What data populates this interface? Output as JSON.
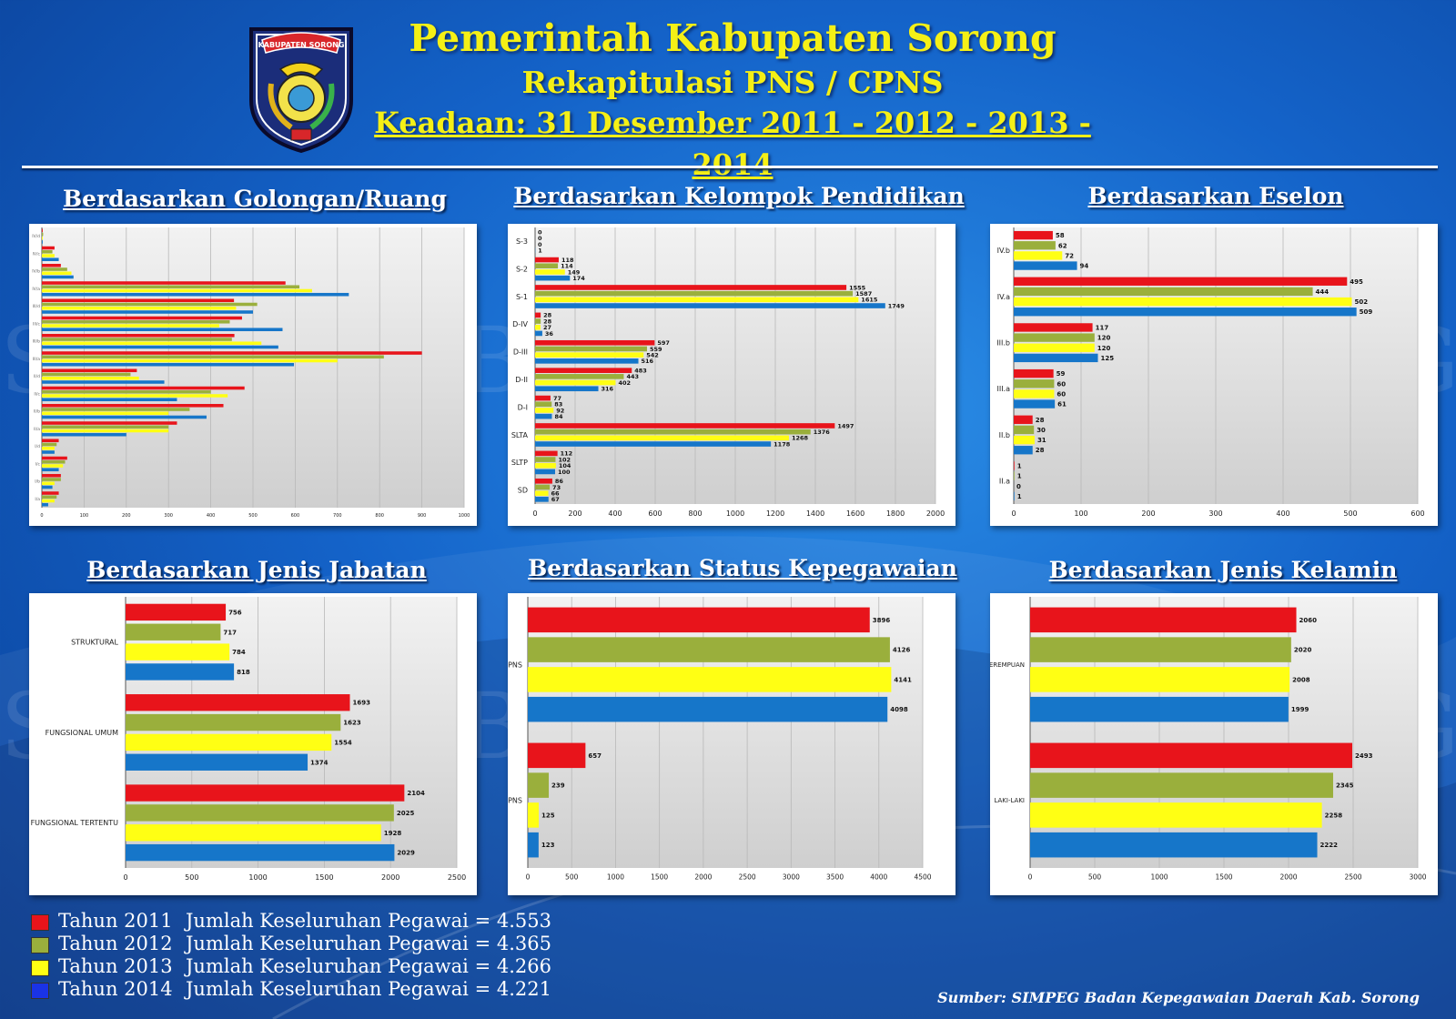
{
  "header": {
    "title": "Pemerintah Kabupaten Sorong",
    "subtitle": "Rekapitulasi PNS / CPNS",
    "date_line": "Keadaan: 31 Desember 2011 - 2012 - 2013 - 2014",
    "logo_text": "KABUPATEN SORONG"
  },
  "watermark": "SIMPEG BKD KAB. SORONG",
  "colors": {
    "y2011": "#e8141b",
    "y2012": "#9aaf3c",
    "y2013": "#ffff14",
    "y2014": "#1676c9"
  },
  "series_names": [
    "2011",
    "2012",
    "2013",
    "2014"
  ],
  "legend": [
    {
      "year": "Tahun 2011",
      "total": "Jumlah Keseluruhan Pegawai = 4.553",
      "color": "#e8141b"
    },
    {
      "year": "Tahun 2012",
      "total": "Jumlah Keseluruhan Pegawai = 4.365",
      "color": "#9aaf3c"
    },
    {
      "year": "Tahun 2013",
      "total": "Jumlah Keseluruhan Pegawai = 4.266",
      "color": "#ffff14"
    },
    {
      "year": "Tahun 2014",
      "total": "Jumlah Keseluruhan Pegawai = 4.221",
      "color": "#1a33e6"
    }
  ],
  "source": "Sumber: SIMPEG Badan Kepegawaian Daerah Kab. Sorong",
  "chart_data": [
    {
      "id": "golongan",
      "type": "bar",
      "orientation": "horizontal",
      "title": "Berdasarkan Golongan/Ruang",
      "xlim": [
        0,
        1000
      ],
      "ticks": [
        0,
        100,
        200,
        300,
        400,
        500,
        600,
        700,
        800,
        900,
        1000
      ],
      "categories": [
        "IV/d",
        "IV/c",
        "IV/b",
        "IV/a",
        "III/d",
        "III/c",
        "III/b",
        "III/a",
        "II/d",
        "II/c",
        "II/b",
        "II/a",
        "I/d",
        "I/c",
        "I/b",
        "I/a"
      ],
      "category_labels_legible": false,
      "show_value_labels": false,
      "series": [
        {
          "name": "2011",
          "values": [
            2,
            30,
            45,
            577,
            455,
            474,
            456,
            900,
            225,
            480,
            430,
            320,
            40,
            60,
            45,
            40
          ]
        },
        {
          "name": "2012",
          "values": [
            3,
            25,
            60,
            610,
            510,
            445,
            450,
            810,
            210,
            400,
            350,
            300,
            35,
            55,
            45,
            35
          ]
        },
        {
          "name": "2013",
          "values": [
            2,
            30,
            70,
            640,
            460,
            420,
            520,
            700,
            230,
            440,
            300,
            300,
            30,
            50,
            30,
            30
          ]
        },
        {
          "name": "2014",
          "values": [
            2,
            40,
            75,
            727,
            500,
            570,
            560,
            597,
            290,
            320,
            390,
            200,
            30,
            40,
            25,
            15
          ]
        }
      ]
    },
    {
      "id": "pendidikan",
      "type": "bar",
      "orientation": "horizontal",
      "title": "Berdasarkan Kelompok Pendidikan",
      "xlim": [
        0,
        2000
      ],
      "ticks": [
        0,
        200,
        400,
        600,
        800,
        1000,
        1200,
        1400,
        1600,
        1800,
        2000
      ],
      "categories": [
        "S-3",
        "S-2",
        "S-1",
        "D-IV",
        "D-III",
        "D-II",
        "D-I",
        "SLTA",
        "SLTP",
        "SD"
      ],
      "series": [
        {
          "name": "2011",
          "values": [
            0,
            118,
            1555,
            28,
            597,
            483,
            77,
            1497,
            112,
            86
          ]
        },
        {
          "name": "2012",
          "values": [
            0,
            114,
            1587,
            28,
            559,
            443,
            83,
            1376,
            102,
            73
          ]
        },
        {
          "name": "2013",
          "values": [
            0,
            149,
            1615,
            27,
            542,
            402,
            92,
            1268,
            104,
            66
          ]
        },
        {
          "name": "2014",
          "values": [
            1,
            174,
            1749,
            36,
            516,
            316,
            84,
            1178,
            100,
            67
          ]
        }
      ]
    },
    {
      "id": "eselon",
      "type": "bar",
      "orientation": "horizontal",
      "title": "Berdasarkan Eselon",
      "xlim": [
        0,
        600
      ],
      "ticks": [
        0,
        100,
        200,
        300,
        400,
        500,
        600
      ],
      "categories": [
        "IV.b",
        "IV.a",
        "III.b",
        "III.a",
        "II.b",
        "II.a"
      ],
      "series": [
        {
          "name": "2011",
          "values": [
            58,
            495,
            117,
            59,
            28,
            1
          ]
        },
        {
          "name": "2012",
          "values": [
            62,
            444,
            120,
            60,
            30,
            1
          ]
        },
        {
          "name": "2013",
          "values": [
            72,
            502,
            120,
            60,
            31,
            0
          ]
        },
        {
          "name": "2014",
          "values": [
            94,
            509,
            125,
            61,
            28,
            1
          ]
        }
      ]
    },
    {
      "id": "jabatan",
      "type": "bar",
      "orientation": "horizontal",
      "title": "Berdasarkan Jenis Jabatan",
      "xlim": [
        0,
        2500
      ],
      "ticks": [
        0,
        500,
        1000,
        1500,
        2000,
        2500
      ],
      "categories": [
        "STRUKTURAL",
        "FUNGSIONAL UMUM",
        "FUNGSIONAL TERTENTU"
      ],
      "series": [
        {
          "name": "2011",
          "values": [
            756,
            1693,
            2104
          ]
        },
        {
          "name": "2012",
          "values": [
            717,
            1623,
            2025
          ]
        },
        {
          "name": "2013",
          "values": [
            784,
            1554,
            1928
          ]
        },
        {
          "name": "2014",
          "values": [
            818,
            1374,
            2029
          ]
        }
      ]
    },
    {
      "id": "status",
      "type": "bar",
      "orientation": "horizontal",
      "title": "Berdasarkan Status Kepegawaian",
      "xlim": [
        0,
        4500
      ],
      "ticks": [
        0,
        500,
        1000,
        1500,
        2000,
        2500,
        3000,
        3500,
        4000,
        4500
      ],
      "categories": [
        "PNS",
        "CPNS"
      ],
      "series": [
        {
          "name": "2011",
          "values": [
            3896,
            657
          ]
        },
        {
          "name": "2012",
          "values": [
            4126,
            239
          ]
        },
        {
          "name": "2013",
          "values": [
            4141,
            125
          ]
        },
        {
          "name": "2014",
          "values": [
            4098,
            123
          ]
        }
      ]
    },
    {
      "id": "kelamin",
      "type": "bar",
      "orientation": "horizontal",
      "title": "Berdasarkan Jenis Kelamin",
      "xlim": [
        0,
        3000
      ],
      "ticks": [
        0,
        500,
        1000,
        1500,
        2000,
        2500,
        3000
      ],
      "categories": [
        "PEREMPUAN",
        "LAKI-LAKI"
      ],
      "series": [
        {
          "name": "2011",
          "values": [
            2060,
            2493
          ]
        },
        {
          "name": "2012",
          "values": [
            2020,
            2345
          ]
        },
        {
          "name": "2013",
          "values": [
            2008,
            2258
          ]
        },
        {
          "name": "2014",
          "values": [
            1999,
            2222
          ]
        }
      ]
    }
  ]
}
